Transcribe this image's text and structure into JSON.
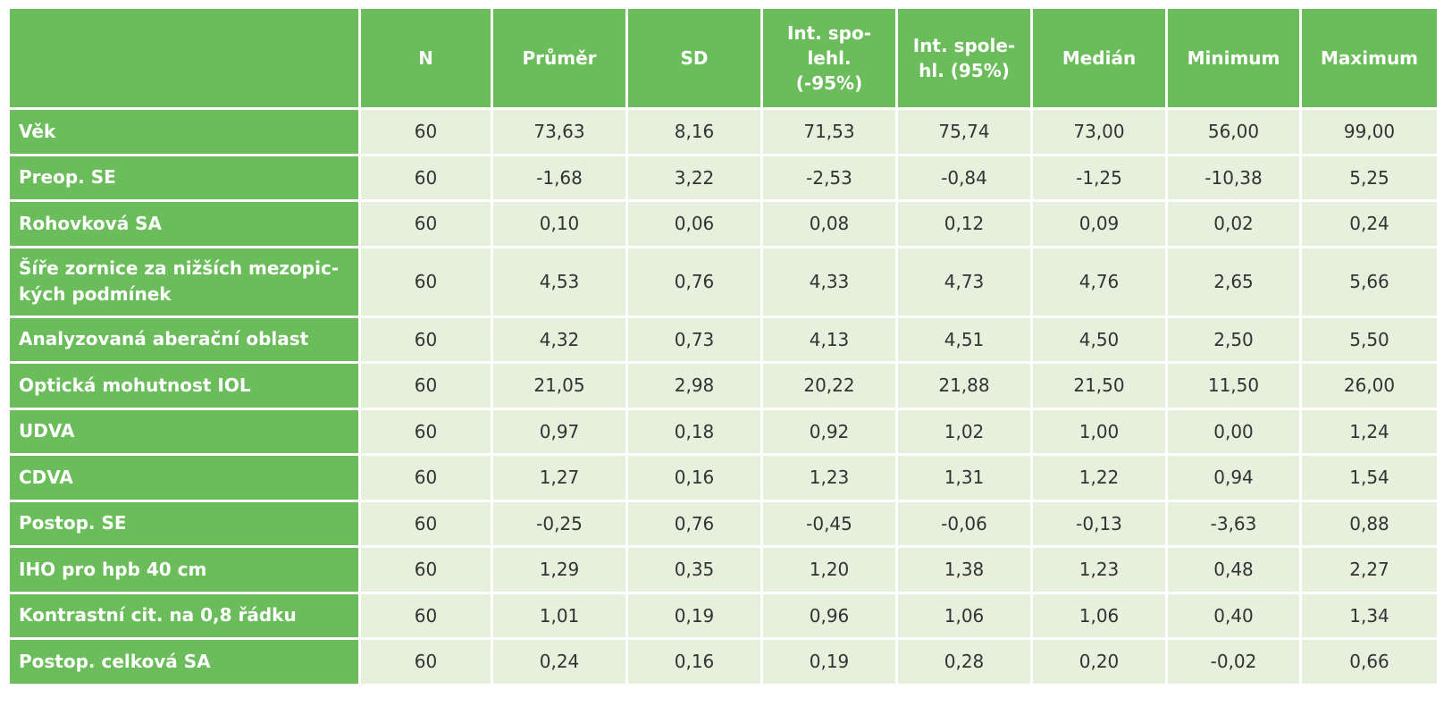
{
  "table": {
    "headers": [
      "",
      "N",
      "Průměr",
      "SD",
      "Int. spo-\nlehl.\n(-95%)",
      "Int. spole-\nhl. (95%)",
      "Medián",
      "Minimum",
      "Maximum"
    ],
    "header_lines": {
      "h4": [
        "Int. spo-",
        "lehl.",
        "(-95%)"
      ],
      "h5": [
        "Int. spole-",
        "hl. (95%)"
      ]
    },
    "rows": [
      {
        "label": "Věk",
        "values": [
          "60",
          "73,63",
          "8,16",
          "71,53",
          "75,74",
          "73,00",
          "56,00",
          "99,00"
        ]
      },
      {
        "label": "Preop. SE",
        "values": [
          "60",
          "-1,68",
          "3,22",
          "-2,53",
          "-0,84",
          "-1,25",
          "-10,38",
          "5,25"
        ]
      },
      {
        "label": "Rohovková SA",
        "values": [
          "60",
          "0,10",
          "0,06",
          "0,08",
          "0,12",
          "0,09",
          "0,02",
          "0,24"
        ]
      },
      {
        "label": "Šíře zornice za nižších mezopic-",
        "label2": "kých podmínek",
        "values": [
          "60",
          "4,53",
          "0,76",
          "4,33",
          "4,73",
          "4,76",
          "2,65",
          "5,66"
        ]
      },
      {
        "label": "Analyzovaná aberační oblast",
        "values": [
          "60",
          "4,32",
          "0,73",
          "4,13",
          "4,51",
          "4,50",
          "2,50",
          "5,50"
        ]
      },
      {
        "label": "Optická mohutnost IOL",
        "values": [
          "60",
          "21,05",
          "2,98",
          "20,22",
          "21,88",
          "21,50",
          "11,50",
          "26,00"
        ]
      },
      {
        "label": "UDVA",
        "values": [
          "60",
          "0,97",
          "0,18",
          "0,92",
          "1,02",
          "1,00",
          "0,00",
          "1,24"
        ]
      },
      {
        "label": "CDVA",
        "values": [
          "60",
          "1,27",
          "0,16",
          "1,23",
          "1,31",
          "1,22",
          "0,94",
          "1,54"
        ]
      },
      {
        "label": "Postop. SE",
        "values": [
          "60",
          "-0,25",
          "0,76",
          "-0,45",
          "-0,06",
          "-0,13",
          "-3,63",
          "0,88"
        ]
      },
      {
        "label": "IHO pro hpb 40 cm",
        "values": [
          "60",
          "1,29",
          "0,35",
          "1,20",
          "1,38",
          "1,23",
          "0,48",
          "2,27"
        ]
      },
      {
        "label": "Kontrastní cit. na 0,8 řádku",
        "values": [
          "60",
          "1,01",
          "0,19",
          "0,96",
          "1,06",
          "1,06",
          "0,40",
          "1,34"
        ]
      },
      {
        "label": "Postop. celková SA",
        "values": [
          "60",
          "0,24",
          "0,16",
          "0,19",
          "0,28",
          "0,20",
          "-0,02",
          "0,66"
        ]
      }
    ]
  },
  "colors": {
    "header_green": "#6abd5a",
    "cell_bg": "#e6f0dc",
    "border": "#ffffff"
  }
}
